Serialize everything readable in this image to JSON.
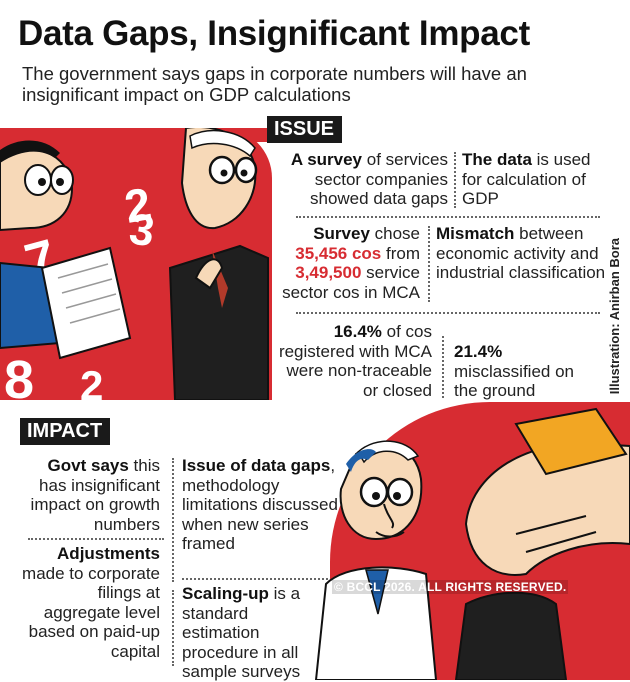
{
  "title": "Data Gaps, Insignificant Impact",
  "subtitle": "The government says gaps in corporate numbers will have an insignificant impact on GDP calculations",
  "issue": {
    "label": "ISSUE",
    "b1_bold": "A survey",
    "b1_rest": " of services sector companies showed data gaps",
    "b2_bold": "The data",
    "b2_rest": " is used for calculation of GDP",
    "b3_bold": "Survey",
    "b3_mid": " chose ",
    "b3_num1": "35,456 cos",
    "b3_mid2": " from ",
    "b3_num2": "3,49,500",
    "b3_rest": " service sector cos in MCA",
    "b4_bold": "Mismatch",
    "b4_rest": " between economic activity and industrial classification",
    "b5_bold": "16.4%",
    "b5_rest": " of cos registered with MCA were non-traceable or closed",
    "b6_bold": "21.4%",
    "b6_rest": "misclassified on the ground"
  },
  "impact": {
    "label": "IMPACT",
    "b1_bold": "Govt says",
    "b1_rest": " this has insignificant impact on growth numbers",
    "b2_bold": "Adjustments",
    "b2_rest": "made to corporate filings at aggregate level based on paid-up capital",
    "b3_bold": "Issue of data gaps",
    "b3_rest": ", methodology limitations discussed when new series framed",
    "b4_bold": "Scaling-up",
    "b4_rest": " is a standard estimation procedure in all sample surveys"
  },
  "credit": "Illustration: Anirban Bora",
  "copyright": "© BCCL 2026. ALL RIGHTS RESERVED.",
  "colors": {
    "accent": "#d72c32",
    "dark": "#1a1a1a"
  }
}
